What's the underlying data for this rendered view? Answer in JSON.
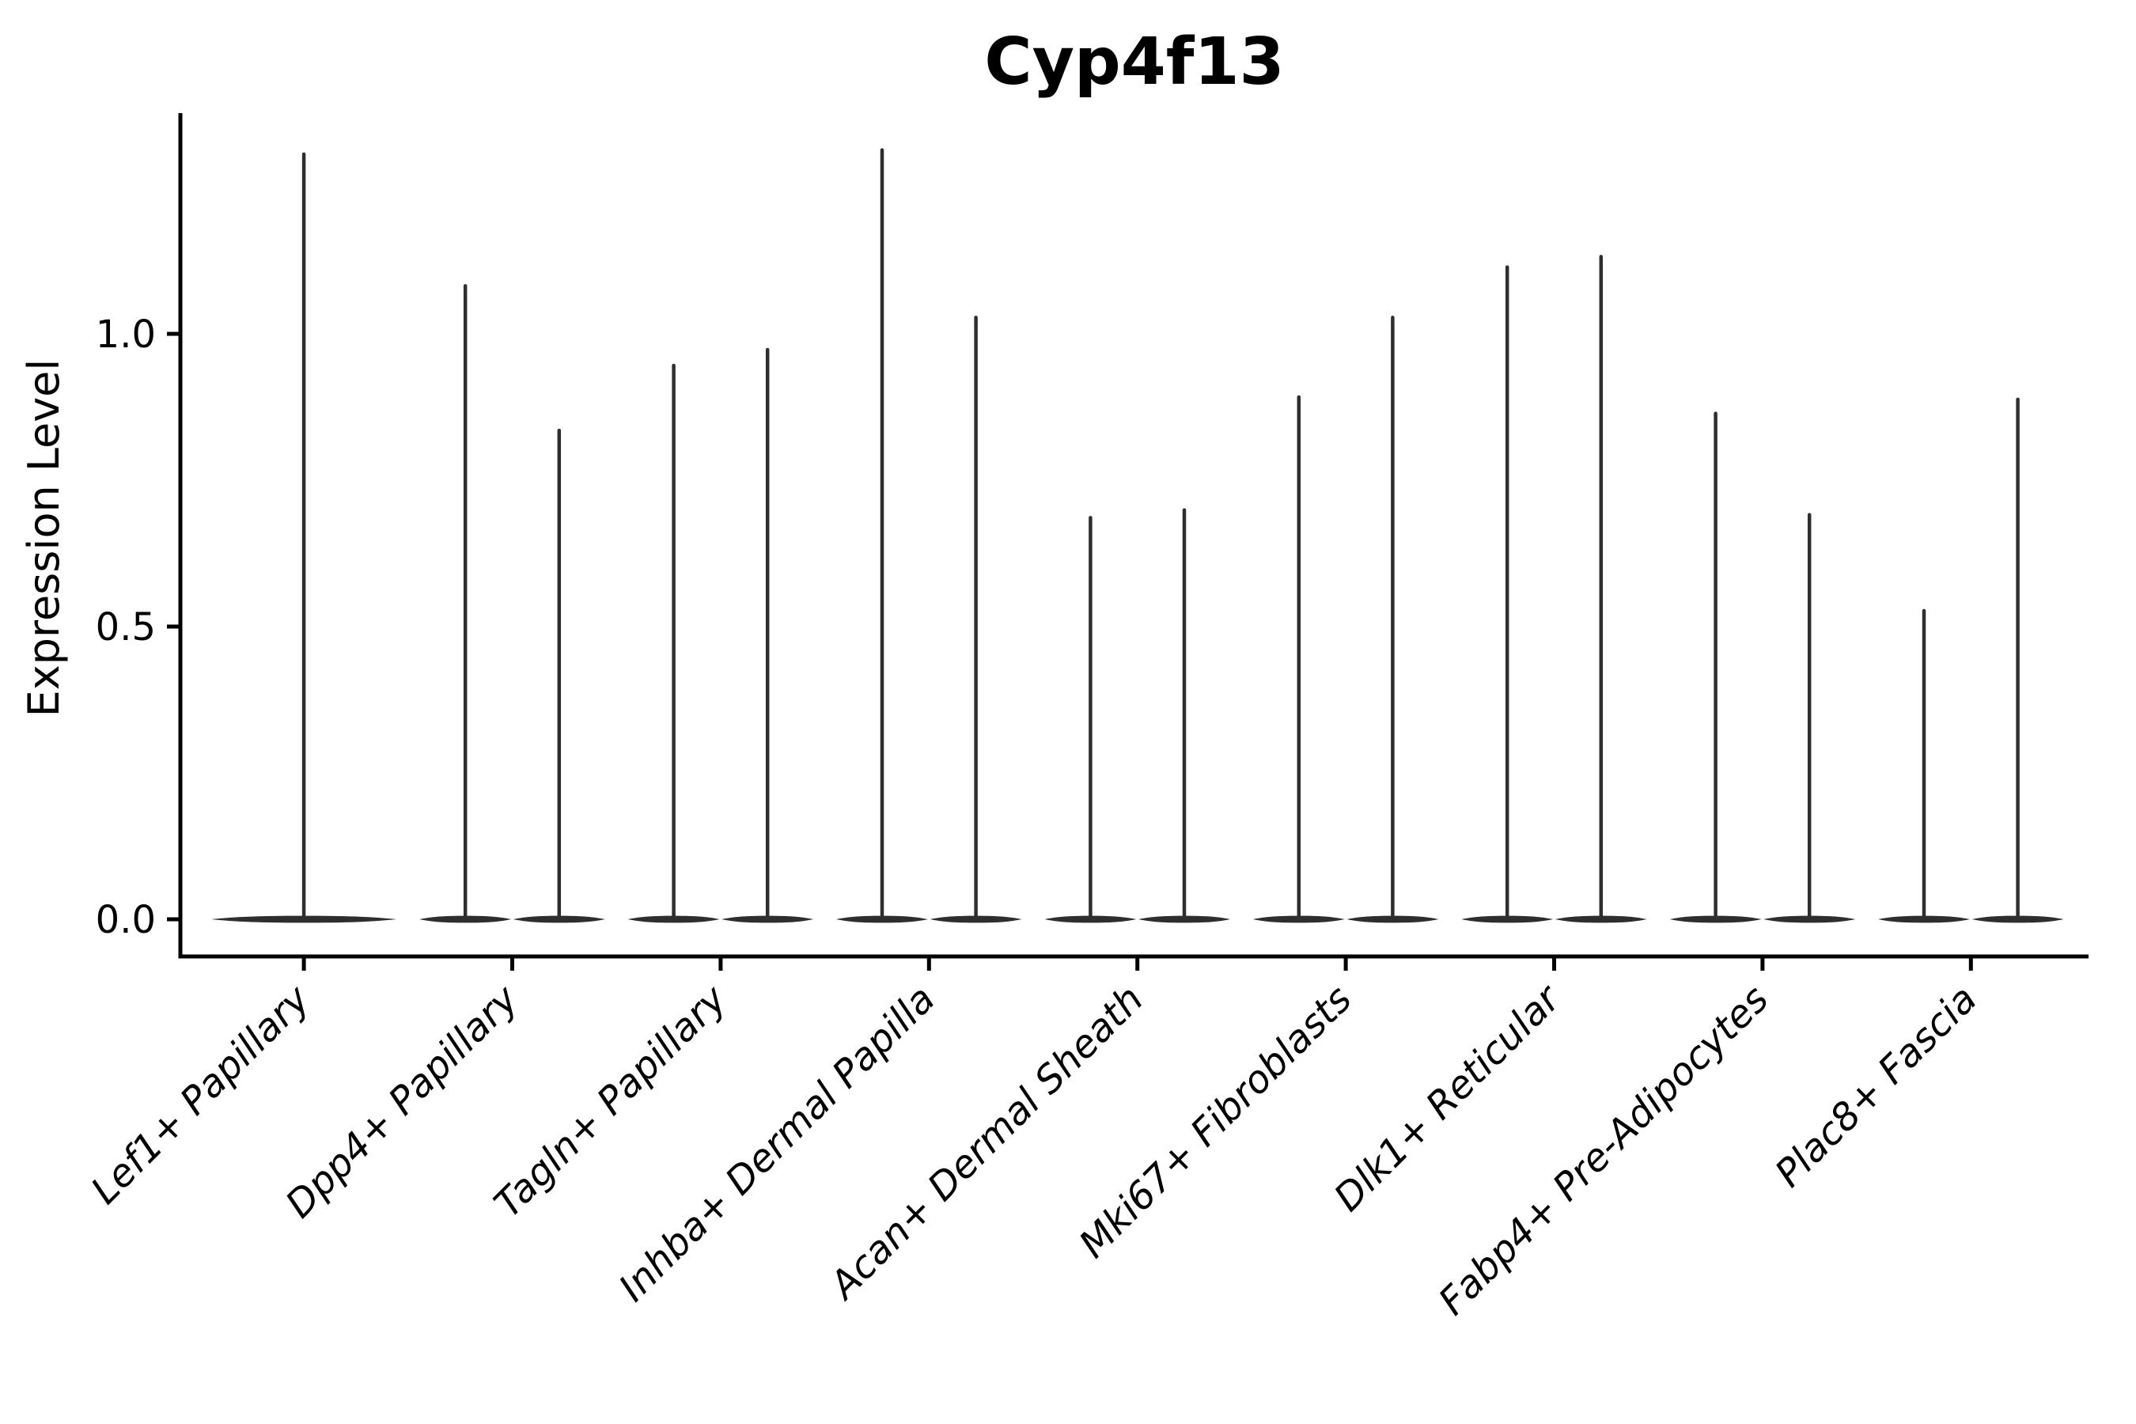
{
  "chart_data": {
    "type": "violin",
    "title": "Cyp4f13",
    "ylabel": "Expression Level",
    "xlabel": "",
    "categories": [
      "Lef1+ Papillary",
      "Dpp4+ Papillary",
      "Tagln+ Papillary",
      "Inhba+ Dermal Papilla",
      "Acan+ Dermal Sheath",
      "Mki67+ Fibroblasts",
      "Dlk1+ Reticular",
      "Fabp4+ Pre-Adipocytes",
      "Plac8+ Fascia"
    ],
    "violins": [
      {
        "category": "Lef1+ Papillary",
        "max_values": [
          1.307
        ]
      },
      {
        "category": "Dpp4+ Papillary",
        "max_values": [
          1.082,
          0.835
        ]
      },
      {
        "category": "Tagln+ Papillary",
        "max_values": [
          0.946,
          0.973
        ]
      },
      {
        "category": "Inhba+ Dermal Papilla",
        "max_values": [
          1.314,
          1.028
        ]
      },
      {
        "category": "Acan+ Dermal Sheath",
        "max_values": [
          0.686,
          0.699
        ]
      },
      {
        "category": "Mki67+ Fibroblasts",
        "max_values": [
          0.892,
          1.028
        ]
      },
      {
        "category": "Dlk1+ Reticular",
        "max_values": [
          1.114,
          1.132
        ]
      },
      {
        "category": "Fabp4+ Pre-Adipocytes",
        "max_values": [
          0.864,
          0.691
        ]
      },
      {
        "category": "Plac8+ Fascia",
        "max_values": [
          0.527,
          0.888
        ]
      }
    ],
    "bulk_at_zero": true,
    "yticks": [
      0.0,
      0.5,
      1.0
    ],
    "ytick_labels": [
      "0.0",
      "0.5",
      "1.0"
    ],
    "ylim": [
      -0.064,
      1.374
    ],
    "grid": false,
    "legend": null,
    "colors": {
      "violin": "#2e2e2e",
      "axis": "#000000",
      "text": "#000000",
      "background": "#ffffff"
    }
  }
}
